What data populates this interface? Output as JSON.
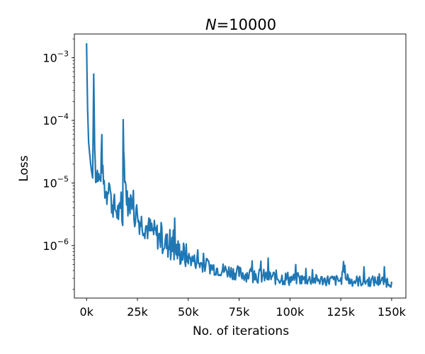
{
  "chart_data": {
    "type": "line",
    "title_prefix": "N",
    "title_suffix": "=10000",
    "xlabel": "No. of iterations",
    "ylabel": "Loss",
    "x_scale": "linear",
    "y_scale": "log",
    "xlim": [
      -6000,
      157000
    ],
    "ylim": [
      1.45e-07,
      0.0024
    ],
    "x_ticks": [
      0,
      25000,
      50000,
      75000,
      100000,
      125000,
      150000
    ],
    "x_tick_labels": [
      "0k",
      "25k",
      "50k",
      "75k",
      "100k",
      "125k",
      "150k"
    ],
    "y_ticks": [
      1e-06,
      1e-05,
      0.0001,
      0.001
    ],
    "y_tick_labels": [
      {
        "base": "10",
        "exp": "−6"
      },
      {
        "base": "10",
        "exp": "−5"
      },
      {
        "base": "10",
        "exp": "−4"
      },
      {
        "base": "10",
        "exp": "−3"
      }
    ],
    "grid": false,
    "line_color": "#1f77b4",
    "series": [
      {
        "x": [
          0,
          500,
          1000,
          1500,
          2000,
          2500,
          3000,
          3500,
          4000,
          4500,
          5000,
          6000,
          7000,
          7500,
          8000,
          9000,
          10000,
          11000,
          12000,
          13000,
          14000,
          15000,
          16000,
          17000,
          17800,
          18000,
          18500,
          19000,
          20000,
          21000,
          22000,
          23000,
          24000,
          25000,
          26000,
          28000,
          30000,
          32000,
          34000,
          36000,
          38000,
          40000,
          42000,
          45000,
          48000,
          50000,
          53000,
          56000,
          60000,
          65000,
          70000,
          75000,
          80000,
          85000,
          90000,
          95000,
          100000,
          105000,
          110000,
          115000,
          120000,
          125000,
          127000,
          128000,
          130000,
          135000,
          140000,
          145000,
          150000
        ],
        "y": [
          0.0017,
          0.00015,
          4.5e-05,
          3e-05,
          2e-05,
          1.5e-05,
          1.2e-05,
          0.00055,
          3.5e-05,
          1.5e-05,
          1.6e-05,
          1.2e-05,
          1e-05,
          3.8e-05,
          1.2e-05,
          8e-06,
          6.5e-06,
          1.3e-05,
          5e-06,
          4.5e-06,
          4e-06,
          3.5e-06,
          3.2e-06,
          3e-06,
          2.8e-06,
          0.00013,
          2.2e-05,
          1.1e-05,
          5e-06,
          4.5e-06,
          3.8e-06,
          3.4e-06,
          3e-06,
          2.7e-06,
          2.5e-06,
          2.2e-06,
          1.9e-06,
          1.7e-06,
          1.5e-06,
          1.3e-06,
          1.15e-06,
          1e-06,
          9e-07,
          8e-07,
          7e-07,
          6.3e-07,
          5.7e-07,
          5.1e-07,
          4.7e-07,
          4.2e-07,
          3.9e-07,
          3.6e-07,
          3.4e-07,
          3.25e-07,
          3.15e-07,
          3.05e-07,
          2.95e-07,
          2.9e-07,
          2.85e-07,
          2.8e-07,
          2.8e-07,
          2.75e-07,
          4e-07,
          2.75e-07,
          2.75e-07,
          2.7e-07,
          2.7e-07,
          2.7e-07,
          2.65e-07
        ]
      }
    ]
  }
}
